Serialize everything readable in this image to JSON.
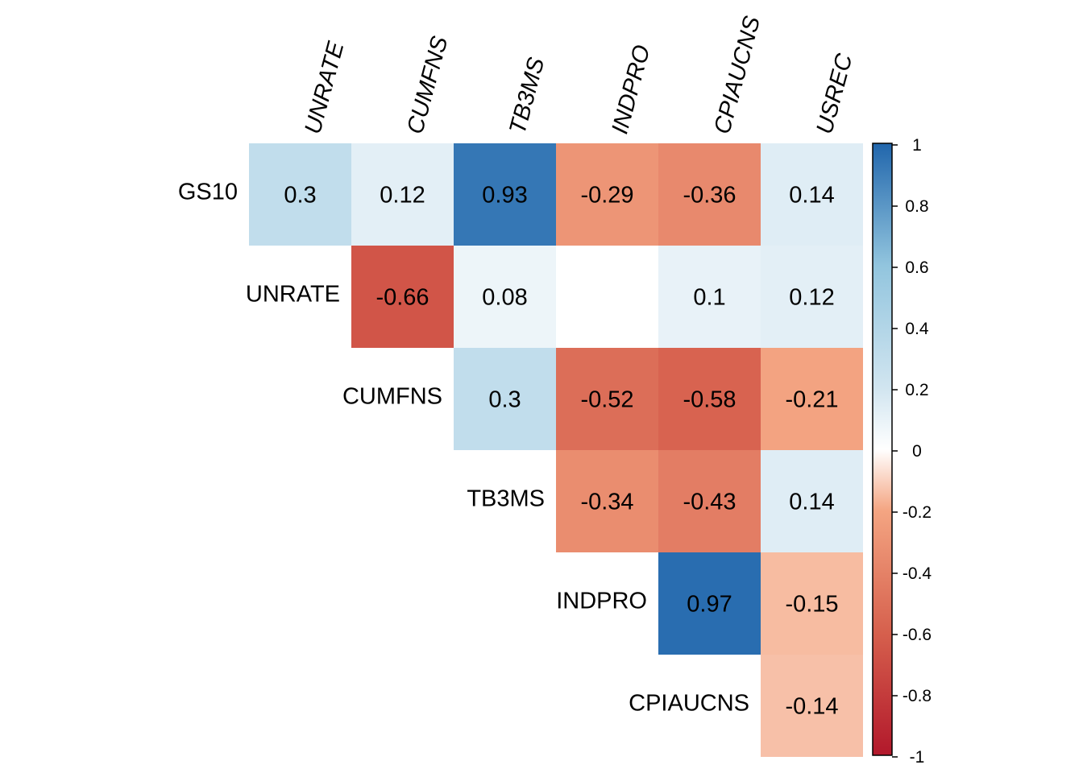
{
  "chart_data": {
    "type": "heatmap",
    "title": "",
    "row_labels": [
      "GS10",
      "UNRATE",
      "CUMFNS",
      "TB3MS",
      "INDPRO",
      "CPIAUCNS"
    ],
    "col_labels": [
      "UNRATE",
      "CUMFNS",
      "TB3MS",
      "INDPRO",
      "CPIAUCNS",
      "USREC"
    ],
    "values": [
      [
        "0.3",
        "0.12",
        "0.93",
        "-0.29",
        "-0.36",
        "0.14"
      ],
      [
        null,
        "-0.66",
        "0.08",
        "",
        "0.1",
        "0.12"
      ],
      [
        null,
        null,
        "0.3",
        "-0.52",
        "-0.58",
        "-0.21"
      ],
      [
        null,
        null,
        null,
        "-0.34",
        "-0.43",
        "0.14"
      ],
      [
        null,
        null,
        null,
        null,
        "0.97",
        "-0.15"
      ],
      [
        null,
        null,
        null,
        null,
        null,
        "-0.14"
      ]
    ],
    "colorbar": {
      "ticks": [
        "1",
        "0.8",
        "0.6",
        "0.4",
        "0.2",
        "0",
        "-0.2",
        "-0.4",
        "-0.6",
        "-0.8",
        "-1"
      ],
      "range": [
        -1,
        1
      ],
      "colors": [
        "#67001F",
        "#B2182B",
        "#D6604D",
        "#F4A582",
        "#FDDBC7",
        "#FFFFFF",
        "#D1E5F0",
        "#92C5DE",
        "#4393C3",
        "#2166AC",
        "#053061"
      ]
    },
    "layout": "upper triangle, diagonal omitted",
    "legend_position": "right"
  }
}
